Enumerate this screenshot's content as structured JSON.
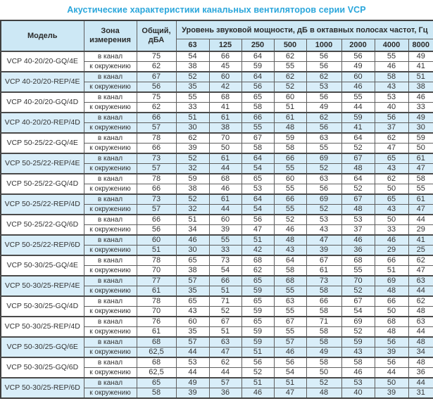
{
  "title": "Акустические характеристики канальных вентиляторов  серии VCP",
  "colors": {
    "title_blue": "#2aa6db",
    "header_background": "#cde8f5",
    "highlight_row_background": "#d9eef9",
    "border": "#4a4a4a",
    "text": "#333333"
  },
  "table": {
    "headers": {
      "model": "Модель",
      "zone": "Зона\nизмерения",
      "total": "Общий,\nдБА",
      "spl_group": "Уровень звуковой мощности, дБ в октавных полосах частот, Гц",
      "frequencies": [
        "63",
        "125",
        "250",
        "500",
        "1000",
        "2000",
        "4000",
        "8000"
      ]
    },
    "zone_labels": {
      "duct": "в канал",
      "ambient": "к окружению"
    },
    "rows": [
      {
        "model": "VCP 40-20/20-GQ/4E",
        "highlight": false,
        "duct": {
          "total": "75",
          "bands": [
            "54",
            "66",
            "64",
            "62",
            "56",
            "56",
            "55",
            "49"
          ]
        },
        "ambient": {
          "total": "62",
          "bands": [
            "38",
            "45",
            "59",
            "55",
            "56",
            "49",
            "46",
            "41"
          ]
        }
      },
      {
        "model": "VCP 40-20/20-REP/4E",
        "highlight": true,
        "duct": {
          "total": "67",
          "bands": [
            "52",
            "60",
            "64",
            "62",
            "62",
            "60",
            "58",
            "51"
          ]
        },
        "ambient": {
          "total": "56",
          "bands": [
            "35",
            "42",
            "56",
            "52",
            "53",
            "46",
            "43",
            "38"
          ]
        }
      },
      {
        "model": "VCP 40-20/20-GQ/4D",
        "highlight": false,
        "duct": {
          "total": "75",
          "bands": [
            "55",
            "68",
            "65",
            "60",
            "56",
            "55",
            "53",
            "46"
          ]
        },
        "ambient": {
          "total": "62",
          "bands": [
            "33",
            "41",
            "58",
            "51",
            "49",
            "44",
            "40",
            "33"
          ]
        }
      },
      {
        "model": "VCP 40-20/20-REP/4D",
        "highlight": true,
        "duct": {
          "total": "66",
          "bands": [
            "51",
            "61",
            "66",
            "61",
            "62",
            "59",
            "56",
            "49"
          ]
        },
        "ambient": {
          "total": "57",
          "bands": [
            "30",
            "38",
            "55",
            "48",
            "56",
            "41",
            "37",
            "30"
          ]
        }
      },
      {
        "model": "VCP 50-25/22-GQ/4E",
        "highlight": false,
        "duct": {
          "total": "78",
          "bands": [
            "62",
            "70",
            "67",
            "59",
            "63",
            "64",
            "62",
            "59"
          ]
        },
        "ambient": {
          "total": "66",
          "bands": [
            "39",
            "50",
            "58",
            "58",
            "55",
            "52",
            "47",
            "50"
          ]
        }
      },
      {
        "model": "VCP 50-25/22-REP/4E",
        "highlight": true,
        "duct": {
          "total": "73",
          "bands": [
            "52",
            "61",
            "64",
            "66",
            "69",
            "67",
            "65",
            "61"
          ]
        },
        "ambient": {
          "total": "57",
          "bands": [
            "32",
            "44",
            "54",
            "55",
            "52",
            "48",
            "43",
            "47"
          ]
        }
      },
      {
        "model": "VCP 50-25/22-GQ/4D",
        "highlight": false,
        "duct": {
          "total": "78",
          "bands": [
            "59",
            "68",
            "65",
            "60",
            "63",
            "64",
            "62",
            "58"
          ]
        },
        "ambient": {
          "total": "66",
          "bands": [
            "38",
            "46",
            "53",
            "55",
            "56",
            "52",
            "50",
            "55"
          ]
        }
      },
      {
        "model": "VCP 50-25/22-REP/4D",
        "highlight": true,
        "duct": {
          "total": "73",
          "bands": [
            "52",
            "61",
            "64",
            "66",
            "69",
            "67",
            "65",
            "61"
          ]
        },
        "ambient": {
          "total": "57",
          "bands": [
            "32",
            "44",
            "54",
            "55",
            "52",
            "48",
            "43",
            "47"
          ]
        }
      },
      {
        "model": "VCP 50-25/22-GQ/6D",
        "highlight": false,
        "duct": {
          "total": "66",
          "bands": [
            "51",
            "60",
            "56",
            "52",
            "53",
            "53",
            "50",
            "44"
          ]
        },
        "ambient": {
          "total": "56",
          "bands": [
            "34",
            "39",
            "47",
            "46",
            "43",
            "37",
            "33",
            "29"
          ]
        }
      },
      {
        "model": "VCP 50-25/22-REP/6D",
        "highlight": true,
        "duct": {
          "total": "60",
          "bands": [
            "46",
            "55",
            "51",
            "48",
            "47",
            "46",
            "46",
            "41"
          ]
        },
        "ambient": {
          "total": "51",
          "bands": [
            "30",
            "33",
            "42",
            "43",
            "39",
            "36",
            "29",
            "25"
          ]
        }
      },
      {
        "model": "VCP 50-30/25-GQ/4E",
        "highlight": false,
        "duct": {
          "total": "78",
          "bands": [
            "65",
            "73",
            "68",
            "64",
            "67",
            "68",
            "66",
            "62"
          ]
        },
        "ambient": {
          "total": "70",
          "bands": [
            "38",
            "54",
            "62",
            "58",
            "61",
            "55",
            "51",
            "47"
          ]
        }
      },
      {
        "model": "VCP 50-30/25-REP/4E",
        "highlight": true,
        "duct": {
          "total": "77",
          "bands": [
            "57",
            "66",
            "65",
            "68",
            "73",
            "70",
            "69",
            "63"
          ]
        },
        "ambient": {
          "total": "61",
          "bands": [
            "35",
            "51",
            "59",
            "55",
            "58",
            "52",
            "48",
            "44"
          ]
        }
      },
      {
        "model": "VCP 50-30/25-GQ/4D",
        "highlight": false,
        "duct": {
          "total": "78",
          "bands": [
            "65",
            "71",
            "65",
            "63",
            "66",
            "67",
            "66",
            "62"
          ]
        },
        "ambient": {
          "total": "70",
          "bands": [
            "43",
            "52",
            "59",
            "55",
            "58",
            "54",
            "50",
            "48"
          ]
        }
      },
      {
        "model": "VCP 50-30/25-REP/4D",
        "highlight": false,
        "duct": {
          "total": "76",
          "bands": [
            "60",
            "67",
            "65",
            "67",
            "71",
            "69",
            "68",
            "63"
          ]
        },
        "ambient": {
          "total": "61",
          "bands": [
            "35",
            "51",
            "59",
            "55",
            "58",
            "52",
            "48",
            "44"
          ]
        }
      },
      {
        "model": "VCP 50-30/25-GQ/6E",
        "highlight": true,
        "duct": {
          "total": "68",
          "bands": [
            "57",
            "63",
            "59",
            "57",
            "58",
            "59",
            "56",
            "48"
          ]
        },
        "ambient": {
          "total": "62,5",
          "bands": [
            "44",
            "47",
            "51",
            "46",
            "49",
            "43",
            "39",
            "34"
          ]
        }
      },
      {
        "model": "VCP 50-30/25-GQ/6D",
        "highlight": false,
        "duct": {
          "total": "68",
          "bands": [
            "53",
            "62",
            "56",
            "56",
            "58",
            "58",
            "56",
            "48"
          ]
        },
        "ambient": {
          "total": "62,5",
          "bands": [
            "44",
            "44",
            "52",
            "54",
            "50",
            "46",
            "44",
            "36"
          ]
        }
      },
      {
        "model": "VCP 50-30/25-REP/6D",
        "highlight": true,
        "duct": {
          "total": "65",
          "bands": [
            "49",
            "57",
            "51",
            "51",
            "52",
            "53",
            "50",
            "44"
          ]
        },
        "ambient": {
          "total": "58",
          "bands": [
            "39",
            "36",
            "46",
            "47",
            "48",
            "40",
            "39",
            "31"
          ]
        }
      }
    ]
  }
}
